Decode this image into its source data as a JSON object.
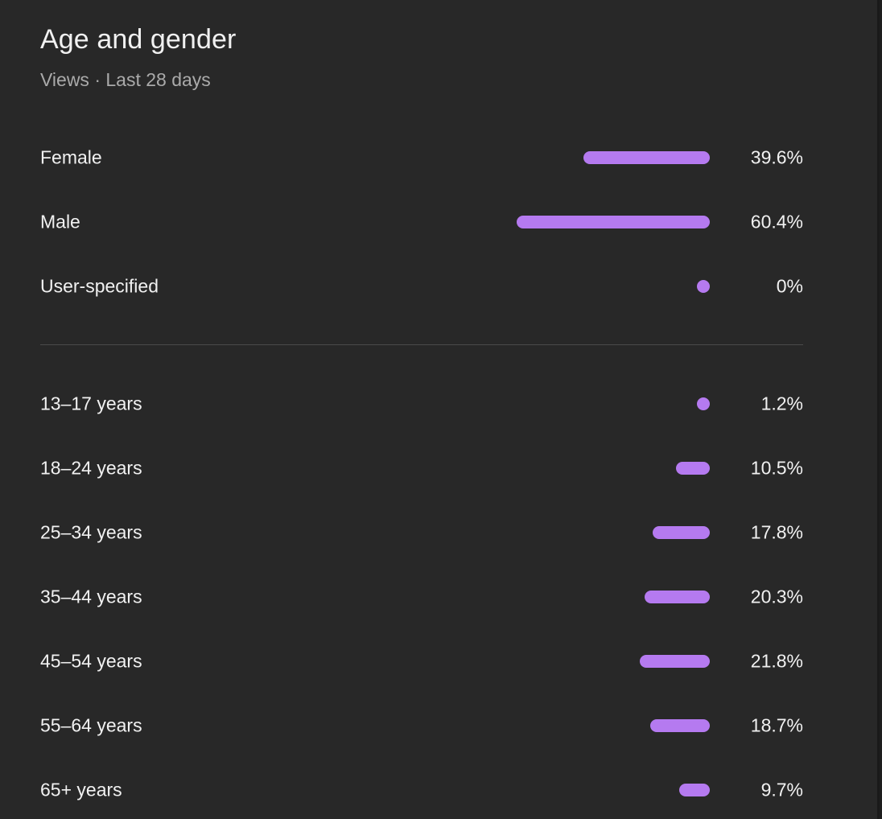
{
  "card": {
    "title": "Age and gender",
    "subtitle": "Views · Last 28 days"
  },
  "colors": {
    "bar": "#b57af0"
  },
  "gender": [
    {
      "label": "Female",
      "value": "39.6%",
      "percent": 39.6
    },
    {
      "label": "Male",
      "value": "60.4%",
      "percent": 60.4
    },
    {
      "label": "User-specified",
      "value": "0%",
      "percent": 0
    }
  ],
  "age": [
    {
      "label": "13–17 years",
      "value": "1.2%",
      "percent": 1.2
    },
    {
      "label": "18–24 years",
      "value": "10.5%",
      "percent": 10.5
    },
    {
      "label": "25–34 years",
      "value": "17.8%",
      "percent": 17.8
    },
    {
      "label": "35–44 years",
      "value": "20.3%",
      "percent": 20.3
    },
    {
      "label": "45–54 years",
      "value": "21.8%",
      "percent": 21.8
    },
    {
      "label": "55–64 years",
      "value": "18.7%",
      "percent": 18.7
    },
    {
      "label": "65+ years",
      "value": "9.7%",
      "percent": 9.7
    }
  ]
}
